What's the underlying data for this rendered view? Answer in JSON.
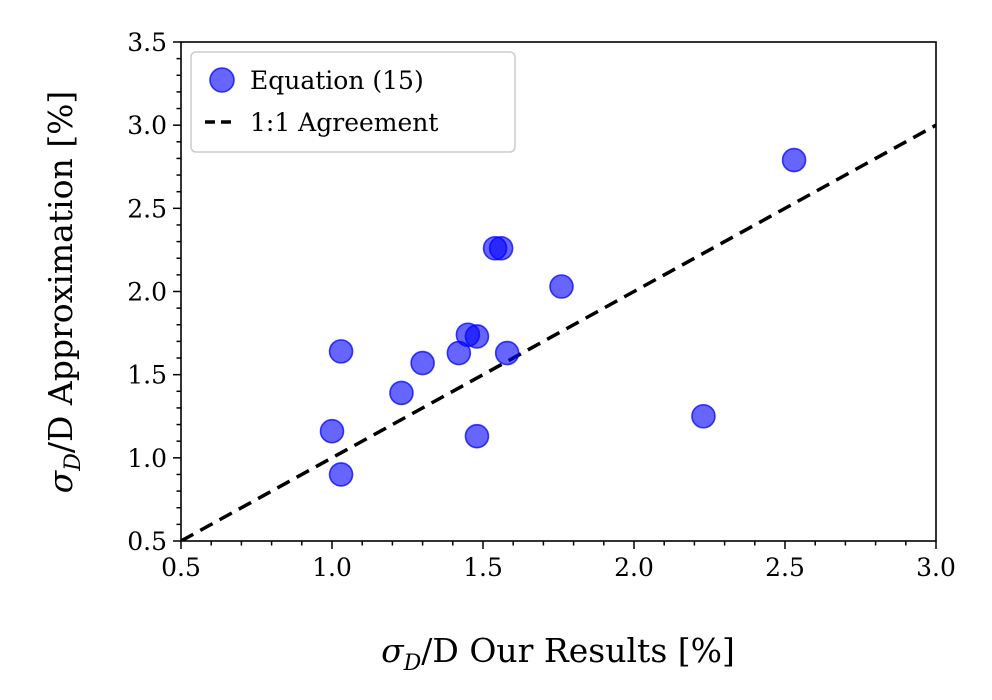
{
  "chart_data": {
    "type": "scatter",
    "xlabel": {
      "symbol": "σ",
      "sub": "D",
      "rest": "/D Our Results [%]"
    },
    "ylabel": {
      "symbol": "σ",
      "sub": "D",
      "rest": "/D Approximation [%]"
    },
    "xlim": [
      0.5,
      3.0
    ],
    "ylim": [
      0.5,
      3.5
    ],
    "x_ticks": [
      "0.5",
      "1.0",
      "1.5",
      "2.0",
      "2.5",
      "3.0"
    ],
    "y_ticks": [
      "0.5",
      "1.0",
      "1.5",
      "2.0",
      "2.5",
      "3.0",
      "3.5"
    ],
    "legend_position": "top-left",
    "series": [
      {
        "name": "Equation (15)",
        "kind": "scatter",
        "color": "#0000ff",
        "x": [
          1.0,
          1.03,
          1.03,
          1.23,
          1.3,
          1.42,
          1.45,
          1.48,
          1.48,
          1.54,
          1.56,
          1.58,
          1.76,
          2.23,
          2.53
        ],
        "y": [
          1.16,
          1.64,
          0.9,
          1.39,
          1.57,
          1.63,
          1.74,
          1.73,
          1.13,
          2.26,
          2.26,
          1.63,
          2.03,
          1.25,
          2.79
        ]
      },
      {
        "name": "1:1 Agreement",
        "kind": "line",
        "color": "#000000",
        "x": [
          0.5,
          3.0
        ],
        "y": [
          0.5,
          3.0
        ]
      }
    ]
  }
}
